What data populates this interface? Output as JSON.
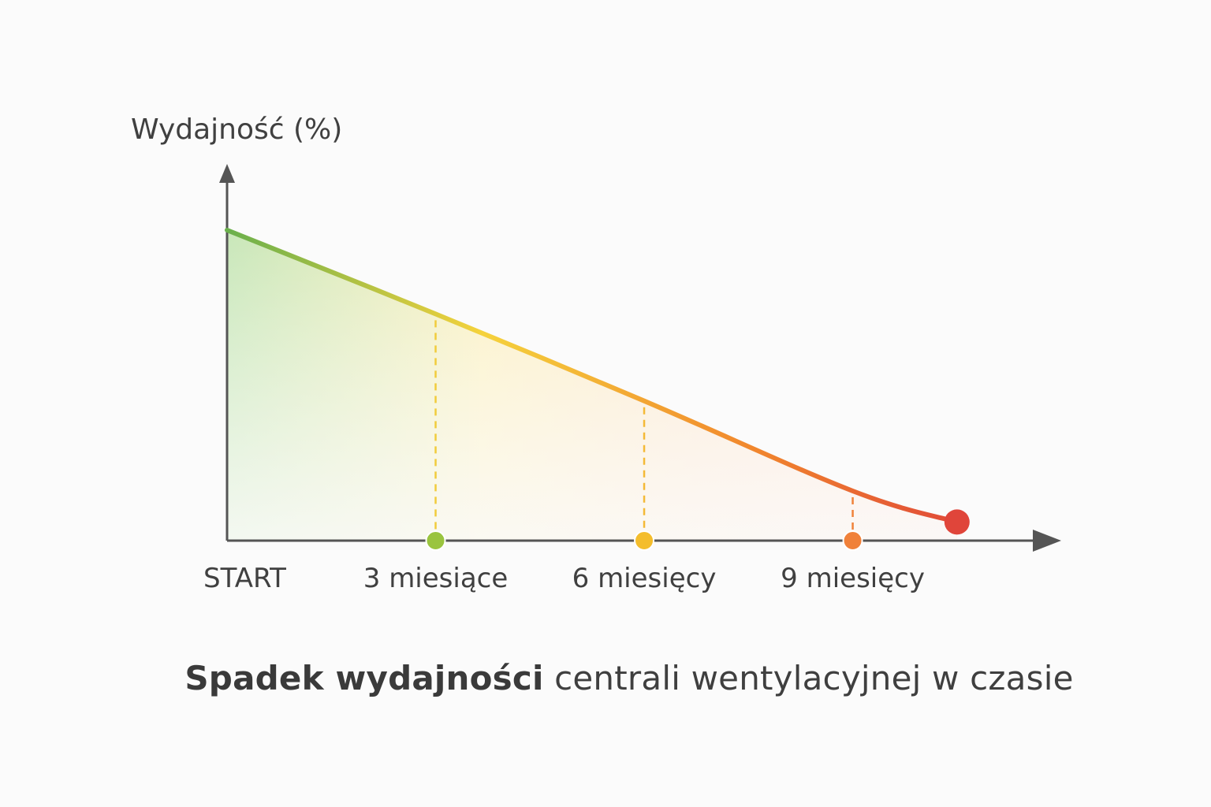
{
  "chart_data": {
    "type": "area",
    "ylabel": "Wydajność (%)",
    "xlabel": "",
    "categories": [
      "START",
      "3 miesiące",
      "6 miesięcy",
      "9 miesięcy"
    ],
    "x": [
      0,
      3,
      6,
      9,
      10.5
    ],
    "values": [
      100,
      73,
      45,
      16,
      6
    ],
    "ylim": [
      0,
      100
    ],
    "xlim": [
      0,
      11.5
    ],
    "grid": false,
    "marker_colors": [
      "#9ac43f",
      "#f4bd2c",
      "#f0813a",
      "#e0453a"
    ],
    "line_colors": [
      "#6ab04c",
      "#f5d23c",
      "#f1872d",
      "#dd3e3a"
    ],
    "caption_bold": "Spadek wydajności",
    "caption_rest": " centrali wentylacyjnej w czasie"
  }
}
